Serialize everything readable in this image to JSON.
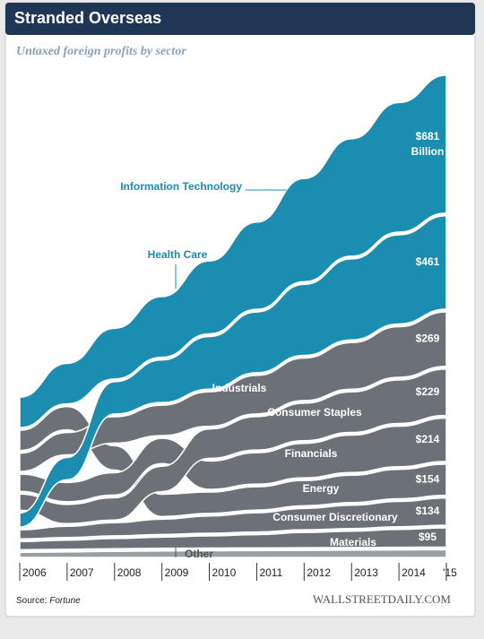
{
  "chart_data": {
    "type": "stream",
    "title": "Stranded Overseas",
    "subtitle": "Untaxed foreign profits by sector",
    "categories": [
      "2006",
      "2007",
      "2008",
      "2009",
      "2010",
      "2011",
      "2012",
      "2013",
      "2014",
      "'15"
    ],
    "unit_label": "Billion",
    "series": [
      {
        "name": "Information Technology",
        "color": "#1b8db0",
        "values": [
          150,
          200,
          250,
          300,
          360,
          430,
          510,
          580,
          640,
          681
        ],
        "value_labels": [
          null,
          null,
          null,
          null,
          null,
          null,
          null,
          null,
          null,
          "$681"
        ]
      },
      {
        "name": "Health Care",
        "color": "#1b8db0",
        "values": [
          70,
          110,
          160,
          210,
          260,
          300,
          350,
          400,
          440,
          461
        ],
        "value_labels": [
          null,
          null,
          null,
          null,
          null,
          null,
          null,
          null,
          null,
          "$461"
        ]
      },
      {
        "name": "Industrials",
        "color": "#6c7077",
        "values": [
          90,
          110,
          130,
          150,
          170,
          190,
          210,
          230,
          250,
          269
        ],
        "value_labels": [
          null,
          null,
          null,
          null,
          null,
          null,
          null,
          null,
          null,
          "$269"
        ]
      },
      {
        "name": "Consumer Staples",
        "color": "#6c7077",
        "values": [
          80,
          95,
          110,
          125,
          145,
          165,
          185,
          200,
          215,
          229
        ],
        "value_labels": [
          null,
          null,
          null,
          null,
          null,
          null,
          null,
          null,
          null,
          "$229"
        ]
      },
      {
        "name": "Financials",
        "color": "#6c7077",
        "values": [
          85,
          95,
          110,
          125,
          140,
          155,
          170,
          185,
          200,
          214
        ],
        "value_labels": [
          null,
          null,
          null,
          null,
          null,
          null,
          null,
          null,
          null,
          "$214"
        ]
      },
      {
        "name": "Energy",
        "color": "#6c7077",
        "values": [
          100,
          115,
          120,
          110,
          105,
          115,
          125,
          135,
          145,
          154
        ],
        "value_labels": [
          null,
          null,
          null,
          null,
          null,
          null,
          null,
          null,
          null,
          "$154"
        ]
      },
      {
        "name": "Consumer Discretionary",
        "color": "#6c7077",
        "values": [
          45,
          55,
          65,
          75,
          85,
          95,
          105,
          115,
          125,
          134
        ],
        "value_labels": [
          null,
          null,
          null,
          null,
          null,
          null,
          null,
          null,
          null,
          "$134"
        ]
      },
      {
        "name": "Materials",
        "color": "#6c7077",
        "values": [
          40,
          45,
          50,
          55,
          60,
          65,
          75,
          80,
          88,
          95
        ],
        "value_labels": [
          null,
          null,
          null,
          null,
          null,
          null,
          null,
          null,
          null,
          "$95"
        ]
      },
      {
        "name": "Other",
        "color": "#9a9da2",
        "values": [
          25,
          27,
          30,
          32,
          33,
          34,
          35,
          36,
          37,
          38
        ]
      }
    ],
    "source_label": "Source:",
    "source": "Fortune",
    "brand": "WALLSTREETDAILY.COM"
  }
}
